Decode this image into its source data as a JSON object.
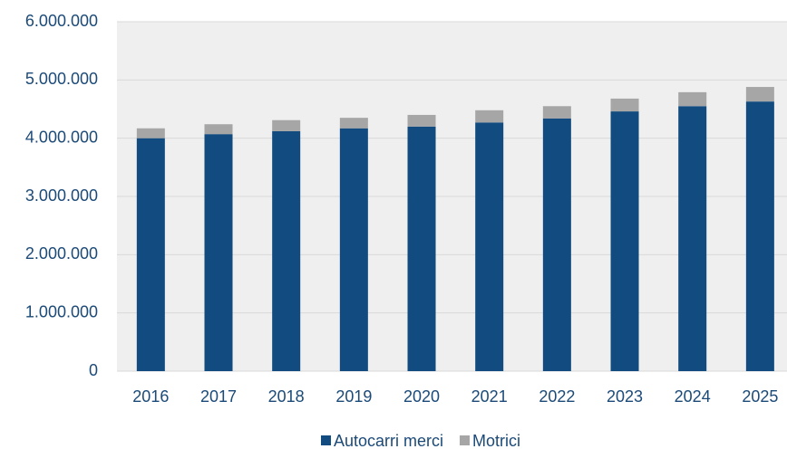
{
  "chart_data": {
    "type": "stacked_bar",
    "categories": [
      "2016",
      "2017",
      "2018",
      "2019",
      "2020",
      "2021",
      "2022",
      "2023",
      "2024",
      "2025"
    ],
    "series": [
      {
        "name": "Autocarri merci",
        "color": "#114b7f",
        "values": [
          4000000,
          4070000,
          4120000,
          4170000,
          4200000,
          4270000,
          4340000,
          4460000,
          4550000,
          4630000
        ]
      },
      {
        "name": "Motrici",
        "color": "#a6a6a6",
        "values": [
          170000,
          170000,
          190000,
          180000,
          200000,
          210000,
          210000,
          220000,
          240000,
          250000
        ]
      }
    ],
    "ylim": [
      0,
      6000000
    ],
    "yticks": [
      0,
      {
        "value": 1000000,
        "label": "1.000.000"
      },
      {
        "value": 2000000,
        "label": "2.000.000"
      },
      {
        "value": 3000000,
        "label": "3.000.000"
      },
      {
        "value": 4000000,
        "label": "4.000.000"
      },
      {
        "value": 5000000,
        "label": "5.000.000"
      },
      {
        "value": 6000000,
        "label": "6.000.000"
      }
    ],
    "grid": true,
    "legend": "bottom"
  }
}
